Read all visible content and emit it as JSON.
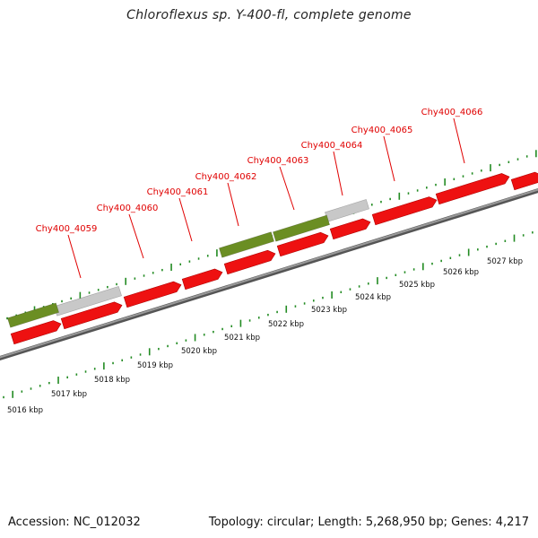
{
  "title": "Chloroflexus sp. Y-400-fl, complete genome",
  "footer": {
    "accession": "Accession: NC_012032",
    "topology": "Topology: circular; Length: 5,268,950 bp; Genes: 4,217"
  },
  "colors": {
    "cds": "#ee1111",
    "rna": "#6b8e23",
    "other": "#c8c8c8",
    "genome_line": "#808080",
    "tick": "#228b22",
    "gene_label": "#e00000"
  },
  "gene_labels": [
    "Chy400_4059",
    "Chy400_4060",
    "Chy400_4061",
    "Chy400_4062",
    "Chy400_4063",
    "Chy400_4064",
    "Chy400_4065",
    "Chy400_4066"
  ],
  "kbp_labels": [
    "5016 kbp",
    "5017 kbp",
    "5018 kbp",
    "5019 kbp",
    "5020 kbp",
    "5021 kbp",
    "5022 kbp",
    "5023 kbp",
    "5024 kbp",
    "5025 kbp",
    "5026 kbp",
    "5027 kbp"
  ]
}
